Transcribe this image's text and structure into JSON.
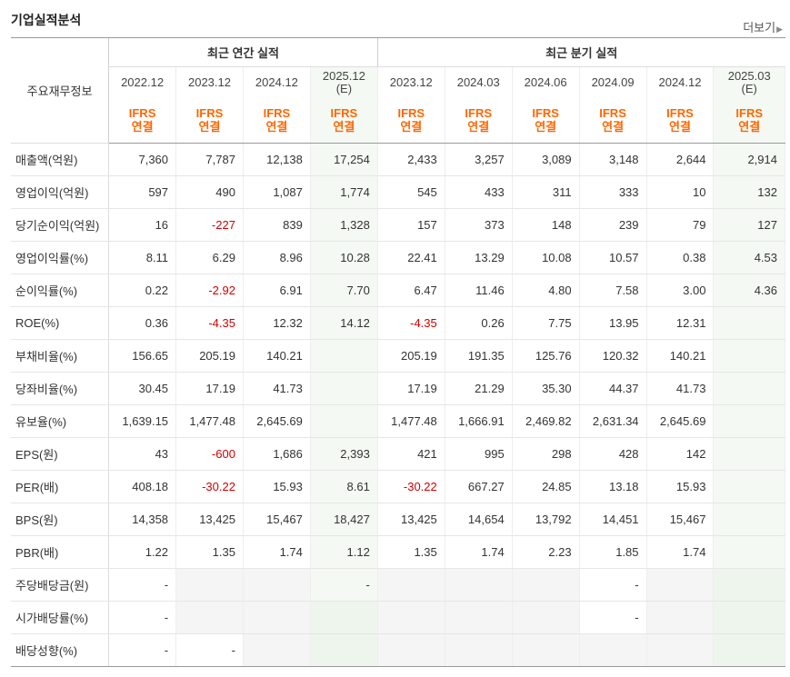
{
  "header": {
    "title": "기업실적분석",
    "more_label": "더보기"
  },
  "table": {
    "row_header_label": "주요재무정보",
    "annual_group_label": "최근 연간 실적",
    "quarter_group_label": "최근 분기 실적",
    "ifrs_line1": "IFRS",
    "ifrs_line2": "연결",
    "annual_periods": [
      "2022.12",
      "2023.12",
      "2024.12",
      "2025.12"
    ],
    "quarter_periods": [
      "2023.12",
      "2024.03",
      "2024.06",
      "2024.09",
      "2024.12",
      "2025.03"
    ],
    "estimate_mark": "(E)",
    "rows": [
      {
        "label": "매출액(억원)",
        "values": [
          "7,360",
          "7,787",
          "12,138",
          "17,254",
          "2,433",
          "3,257",
          "3,089",
          "3,148",
          "2,644",
          "2,914"
        ]
      },
      {
        "label": "영업이익(억원)",
        "values": [
          "597",
          "490",
          "1,087",
          "1,774",
          "545",
          "433",
          "311",
          "333",
          "10",
          "132"
        ]
      },
      {
        "label": "당기순이익(억원)",
        "values": [
          "16",
          "-227",
          "839",
          "1,328",
          "157",
          "373",
          "148",
          "239",
          "79",
          "127"
        ]
      },
      {
        "label": "영업이익률(%)",
        "values": [
          "8.11",
          "6.29",
          "8.96",
          "10.28",
          "22.41",
          "13.29",
          "10.08",
          "10.57",
          "0.38",
          "4.53"
        ]
      },
      {
        "label": "순이익률(%)",
        "values": [
          "0.22",
          "-2.92",
          "6.91",
          "7.70",
          "6.47",
          "11.46",
          "4.80",
          "7.58",
          "3.00",
          "4.36"
        ]
      },
      {
        "label": "ROE(%)",
        "values": [
          "0.36",
          "-4.35",
          "12.32",
          "14.12",
          "-4.35",
          "0.26",
          "7.75",
          "13.95",
          "12.31",
          ""
        ]
      },
      {
        "label": "부채비율(%)",
        "values": [
          "156.65",
          "205.19",
          "140.21",
          "",
          "205.19",
          "191.35",
          "125.76",
          "120.32",
          "140.21",
          ""
        ]
      },
      {
        "label": "당좌비율(%)",
        "values": [
          "30.45",
          "17.19",
          "41.73",
          "",
          "17.19",
          "21.29",
          "35.30",
          "44.37",
          "41.73",
          ""
        ]
      },
      {
        "label": "유보율(%)",
        "values": [
          "1,639.15",
          "1,477.48",
          "2,645.69",
          "",
          "1,477.48",
          "1,666.91",
          "2,469.82",
          "2,631.34",
          "2,645.69",
          ""
        ]
      },
      {
        "label": "EPS(원)",
        "values": [
          "43",
          "-600",
          "1,686",
          "2,393",
          "421",
          "995",
          "298",
          "428",
          "142",
          ""
        ]
      },
      {
        "label": "PER(배)",
        "values": [
          "408.18",
          "-30.22",
          "15.93",
          "8.61",
          "-30.22",
          "667.27",
          "24.85",
          "13.18",
          "15.93",
          ""
        ]
      },
      {
        "label": "BPS(원)",
        "values": [
          "14,358",
          "13,425",
          "15,467",
          "18,427",
          "13,425",
          "14,654",
          "13,792",
          "14,451",
          "15,467",
          ""
        ]
      },
      {
        "label": "PBR(배)",
        "values": [
          "1.22",
          "1.35",
          "1.74",
          "1.12",
          "1.35",
          "1.74",
          "2.23",
          "1.85",
          "1.74",
          ""
        ]
      },
      {
        "label": "주당배당금(원)",
        "values": [
          "-",
          "",
          "",
          "-",
          "",
          "",
          "",
          "-",
          "",
          ""
        ]
      },
      {
        "label": "시가배당률(%)",
        "values": [
          "-",
          "",
          "",
          "",
          "",
          "",
          "",
          "-",
          "",
          ""
        ]
      },
      {
        "label": "배당성향(%)",
        "values": [
          "-",
          "-",
          "",
          "",
          "",
          "",
          "",
          "",
          "",
          ""
        ]
      }
    ]
  }
}
